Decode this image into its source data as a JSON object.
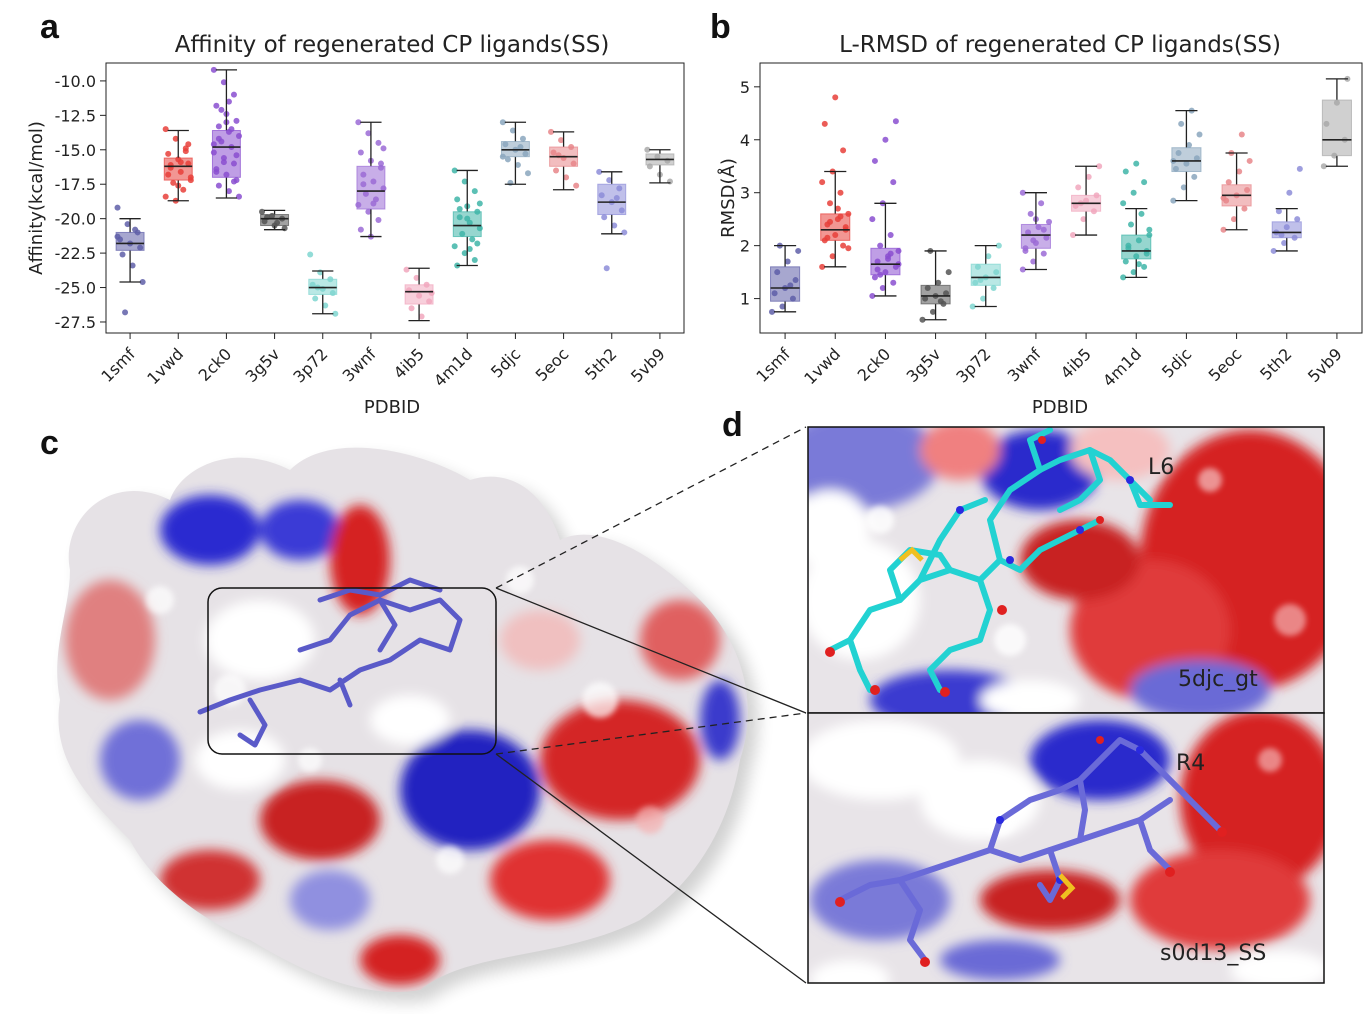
{
  "panels": {
    "a": {
      "letter": "a"
    },
    "b": {
      "letter": "b"
    },
    "c": {
      "letter": "c"
    },
    "d": {
      "letter": "d"
    }
  },
  "chart_data": [
    {
      "id": "affinity",
      "type": "box",
      "title": "Affinity of regenerated CP ligands(SS)",
      "xlabel": "PDBID",
      "ylabel": "Affinity(kcal/mol)",
      "ylim": [
        -28.3,
        -8.7
      ],
      "yticks": [
        -10.0,
        -12.5,
        -15.0,
        -17.5,
        -20.0,
        -22.5,
        -25.0,
        -27.5
      ],
      "ytick_labels": [
        "-10.0",
        "-12.5",
        "-15.0",
        "-17.5",
        "-20.0",
        "-22.5",
        "-25.0",
        "-27.5"
      ],
      "categories": [
        "1smf",
        "1vwd",
        "2ck0",
        "3g5v",
        "3p72",
        "3wnf",
        "4ib5",
        "4m1d",
        "5djc",
        "5eoc",
        "5th2",
        "5vb9"
      ],
      "colors": [
        "#5f5fa8",
        "#e8403a",
        "#8a4fd0",
        "#555555",
        "#7fd6d0",
        "#9b6bd6",
        "#f1a7bd",
        "#3fb5a8",
        "#8aa6bd",
        "#e7868a",
        "#8d8dd8",
        "#aaaaaa"
      ],
      "boxes": [
        {
          "q1": -22.3,
          "median": -21.8,
          "q3": -21.0,
          "whislo": -24.6,
          "whishi": -20.0,
          "points": [
            -19.2,
            -20.4,
            -21.0,
            -21.5,
            -21.8,
            -22.1,
            -22.6,
            -23.4,
            -24.6,
            -26.8,
            -20.8,
            -21.3
          ]
        },
        {
          "q1": -17.2,
          "median": -16.2,
          "q3": -15.6,
          "whislo": -18.7,
          "whishi": -13.6,
          "points": [
            -13.5,
            -14.2,
            -14.9,
            -15.3,
            -15.7,
            -16.0,
            -16.3,
            -16.6,
            -17.0,
            -17.4,
            -17.9,
            -18.4,
            -18.7,
            -15.1,
            -16.8,
            -17.6,
            -14.6,
            -16.1,
            -15.9,
            -17.2
          ]
        },
        {
          "q1": -17.0,
          "median": -14.8,
          "q3": -13.6,
          "whislo": -18.5,
          "whishi": -9.2,
          "points": [
            -9.2,
            -10.1,
            -11.0,
            -11.8,
            -12.4,
            -12.9,
            -13.3,
            -13.7,
            -14.0,
            -14.4,
            -14.8,
            -15.2,
            -15.6,
            -16.0,
            -16.4,
            -16.8,
            -17.2,
            -17.6,
            -18.0,
            -18.4,
            -12.1,
            -13.5,
            -14.6,
            -15.9,
            -17.3,
            -16.6,
            -13.0,
            -15.4,
            -14.2,
            -11.5
          ]
        },
        {
          "q1": -20.5,
          "median": -20.0,
          "q3": -19.7,
          "whislo": -20.8,
          "whishi": -19.4,
          "points": [
            -19.5,
            -19.8,
            -20.0,
            -20.2,
            -20.5,
            -20.7,
            -19.9,
            -20.3
          ]
        },
        {
          "q1": -25.5,
          "median": -25.0,
          "q3": -24.4,
          "whislo": -26.9,
          "whishi": -23.8,
          "points": [
            -22.6,
            -23.9,
            -24.4,
            -24.8,
            -25.1,
            -25.4,
            -25.8,
            -26.3,
            -26.9,
            -25.0
          ]
        },
        {
          "q1": -19.3,
          "median": -18.0,
          "q3": -16.2,
          "whislo": -21.3,
          "whishi": -13.0,
          "points": [
            -13.0,
            -13.8,
            -14.5,
            -15.2,
            -15.8,
            -16.3,
            -16.8,
            -17.3,
            -17.8,
            -18.2,
            -18.6,
            -19.0,
            -19.5,
            -20.1,
            -20.8,
            -21.3,
            -16.0,
            -17.5,
            -18.9,
            -14.9
          ]
        },
        {
          "q1": -26.2,
          "median": -25.3,
          "q3": -24.8,
          "whislo": -27.4,
          "whishi": -23.6,
          "points": [
            -23.7,
            -24.3,
            -24.8,
            -25.2,
            -25.6,
            -26.0,
            -26.5,
            -27.1,
            -25.4
          ]
        },
        {
          "q1": -21.3,
          "median": -20.5,
          "q3": -19.5,
          "whislo": -23.4,
          "whishi": -16.5,
          "points": [
            -16.5,
            -17.3,
            -18.0,
            -18.6,
            -19.1,
            -19.5,
            -19.9,
            -20.3,
            -20.7,
            -21.1,
            -21.5,
            -22.0,
            -22.5,
            -23.0,
            -23.4,
            -20.0,
            -21.8,
            -19.3,
            -22.2,
            -18.9
          ]
        },
        {
          "q1": -15.5,
          "median": -15.0,
          "q3": -14.4,
          "whislo": -17.5,
          "whishi": -13.0,
          "points": [
            -13.0,
            -13.6,
            -14.2,
            -14.6,
            -15.0,
            -15.3,
            -15.7,
            -16.1,
            -16.7,
            -17.4,
            -14.8,
            -15.5
          ]
        },
        {
          "q1": -16.2,
          "median": -15.5,
          "q3": -14.8,
          "whislo": -17.9,
          "whishi": -13.7,
          "points": [
            -13.7,
            -14.3,
            -14.8,
            -15.2,
            -15.6,
            -16.0,
            -16.5,
            -17.0,
            -17.6,
            -15.4
          ]
        },
        {
          "q1": -19.7,
          "median": -18.8,
          "q3": -17.5,
          "whislo": -21.1,
          "whishi": -16.6,
          "points": [
            -16.6,
            -17.2,
            -17.8,
            -18.3,
            -18.8,
            -19.4,
            -19.9,
            -20.5,
            -21.0,
            -23.6,
            -18.5
          ]
        },
        {
          "q1": -16.1,
          "median": -15.7,
          "q3": -15.3,
          "whislo": -17.4,
          "whishi": -15.0,
          "points": [
            -15.0,
            -15.5,
            -15.8,
            -16.2,
            -16.8,
            -17.3
          ]
        }
      ]
    },
    {
      "id": "lrmsd",
      "type": "box",
      "title": "L-RMSD of regenerated CP ligands(SS)",
      "xlabel": "PDBID",
      "ylabel": "RMSD(Å)",
      "ylim": [
        0.35,
        5.45
      ],
      "yticks": [
        1,
        2,
        3,
        4,
        5
      ],
      "ytick_labels": [
        "1",
        "2",
        "3",
        "4",
        "5"
      ],
      "categories": [
        "1smf",
        "1vwd",
        "2ck0",
        "3g5v",
        "3p72",
        "3wnf",
        "4ib5",
        "4m1d",
        "5djc",
        "5eoc",
        "5th2",
        "5vb9"
      ],
      "colors": [
        "#5f5fa8",
        "#e8403a",
        "#8a4fd0",
        "#555555",
        "#7fd6d0",
        "#9b6bd6",
        "#f1a7bd",
        "#3fb5a8",
        "#8aa6bd",
        "#e7868a",
        "#8d8dd8",
        "#aaaaaa"
      ],
      "boxes": [
        {
          "q1": 0.95,
          "median": 1.2,
          "q3": 1.6,
          "whislo": 0.75,
          "whishi": 2.0,
          "points": [
            0.75,
            0.85,
            1.0,
            1.1,
            1.2,
            1.35,
            1.5,
            1.7,
            1.9,
            2.0,
            1.25
          ]
        },
        {
          "q1": 2.1,
          "median": 2.3,
          "q3": 2.6,
          "whislo": 1.6,
          "whishi": 3.4,
          "points": [
            1.6,
            1.8,
            2.0,
            2.1,
            2.2,
            2.3,
            2.4,
            2.5,
            2.6,
            2.8,
            3.0,
            3.2,
            3.4,
            3.8,
            4.3,
            4.8,
            2.35,
            2.15,
            2.7,
            1.95,
            2.45,
            2.55
          ]
        },
        {
          "q1": 1.45,
          "median": 1.65,
          "q3": 1.95,
          "whislo": 1.05,
          "whishi": 2.8,
          "points": [
            1.05,
            1.2,
            1.3,
            1.4,
            1.5,
            1.6,
            1.7,
            1.8,
            1.9,
            2.0,
            2.2,
            2.5,
            2.8,
            3.2,
            3.6,
            4.0,
            4.35,
            1.55,
            1.75,
            1.65,
            1.45,
            1.85
          ]
        },
        {
          "q1": 0.9,
          "median": 1.05,
          "q3": 1.25,
          "whislo": 0.6,
          "whishi": 1.9,
          "points": [
            0.6,
            0.75,
            0.9,
            1.0,
            1.05,
            1.1,
            1.2,
            1.3,
            1.5,
            1.9,
            0.95
          ]
        },
        {
          "q1": 1.25,
          "median": 1.4,
          "q3": 1.65,
          "whislo": 0.85,
          "whishi": 2.0,
          "points": [
            0.85,
            1.0,
            1.2,
            1.3,
            1.4,
            1.5,
            1.6,
            1.8,
            2.0,
            1.35
          ]
        },
        {
          "q1": 1.95,
          "median": 2.2,
          "q3": 2.4,
          "whislo": 1.55,
          "whishi": 3.0,
          "points": [
            1.55,
            1.7,
            1.85,
            1.95,
            2.05,
            2.15,
            2.25,
            2.35,
            2.45,
            2.6,
            2.8,
            3.0,
            2.1,
            2.3,
            1.9,
            2.5
          ]
        },
        {
          "q1": 2.65,
          "median": 2.8,
          "q3": 2.95,
          "whislo": 2.2,
          "whishi": 3.5,
          "points": [
            2.2,
            2.5,
            2.65,
            2.75,
            2.85,
            2.95,
            3.1,
            3.3,
            3.5,
            2.8
          ]
        },
        {
          "q1": 1.75,
          "median": 1.9,
          "q3": 2.2,
          "whislo": 1.4,
          "whishi": 2.7,
          "points": [
            1.4,
            1.5,
            1.6,
            1.7,
            1.8,
            1.9,
            2.0,
            2.1,
            2.2,
            2.4,
            2.6,
            2.8,
            3.0,
            3.2,
            3.4,
            3.55,
            1.85,
            1.95,
            1.65,
            2.3
          ]
        },
        {
          "q1": 3.4,
          "median": 3.6,
          "q3": 3.85,
          "whislo": 2.85,
          "whishi": 4.55,
          "points": [
            2.85,
            3.1,
            3.3,
            3.45,
            3.55,
            3.65,
            3.75,
            3.9,
            4.1,
            4.3,
            4.55,
            3.6
          ]
        },
        {
          "q1": 2.75,
          "median": 2.95,
          "q3": 3.15,
          "whislo": 2.3,
          "whishi": 3.75,
          "points": [
            2.3,
            2.5,
            2.7,
            2.85,
            2.95,
            3.05,
            3.2,
            3.4,
            3.6,
            3.75,
            4.1,
            2.9
          ]
        },
        {
          "q1": 2.15,
          "median": 2.25,
          "q3": 2.45,
          "whislo": 1.9,
          "whishi": 2.7,
          "points": [
            1.9,
            2.05,
            2.15,
            2.25,
            2.35,
            2.5,
            2.65,
            3.0,
            3.45,
            2.2
          ]
        },
        {
          "q1": 3.7,
          "median": 4.0,
          "q3": 4.75,
          "whislo": 3.5,
          "whishi": 5.15,
          "points": [
            3.5,
            3.7,
            4.0,
            4.3,
            4.7,
            5.15
          ]
        }
      ]
    }
  ],
  "panel_d": {
    "top": {
      "residue_label": "L6",
      "structure_label": "5djc_gt"
    },
    "bottom": {
      "residue_label": "R4",
      "structure_label": "s0d13_SS"
    }
  }
}
